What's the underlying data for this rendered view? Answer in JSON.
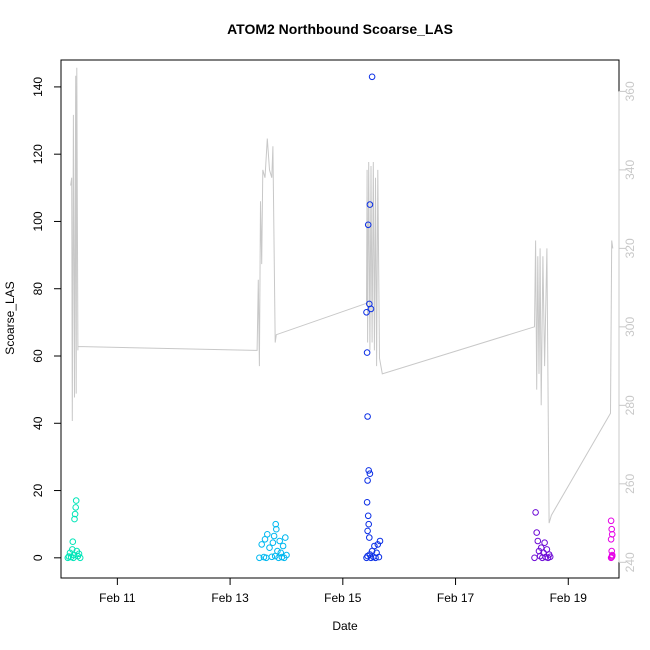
{
  "chart_data": {
    "type": "scatter",
    "title": "ATOM2 Northbound Scoarse_LAS",
    "xlabel": "Date",
    "ylabel": "Scoarse_LAS",
    "x_tick_labels": [
      "Feb 11",
      "Feb 13",
      "Feb 15",
      "Feb 17",
      "Feb 19"
    ],
    "x_tick_values": [
      11,
      13,
      15,
      17,
      19
    ],
    "xlim": [
      10.0,
      19.9
    ],
    "ylim": [
      -6,
      148
    ],
    "y_ticks": [
      0,
      20,
      40,
      60,
      80,
      100,
      120,
      140
    ],
    "y2lim": [
      236,
      368
    ],
    "y2_ticks": [
      240,
      260,
      280,
      300,
      320,
      340,
      360
    ],
    "y2_color": "#c8c8c8",
    "secondary_line": {
      "color": "#c8c8c8",
      "points": [
        [
          10.17,
          336
        ],
        [
          10.19,
          338
        ],
        [
          10.2,
          276
        ],
        [
          10.22,
          354
        ],
        [
          10.24,
          282
        ],
        [
          10.26,
          364
        ],
        [
          10.27,
          283
        ],
        [
          10.28,
          366
        ],
        [
          10.3,
          294
        ],
        [
          10.3,
          295
        ],
        [
          13.48,
          294
        ],
        [
          13.5,
          312
        ],
        [
          13.52,
          290
        ],
        [
          13.54,
          332
        ],
        [
          13.56,
          316
        ],
        [
          13.58,
          340
        ],
        [
          13.62,
          338
        ],
        [
          13.66,
          348
        ],
        [
          13.7,
          340
        ],
        [
          13.74,
          338
        ],
        [
          13.76,
          346
        ],
        [
          13.8,
          296
        ],
        [
          13.82,
          298
        ],
        [
          15.42,
          306
        ],
        [
          15.43,
          340
        ],
        [
          15.44,
          296
        ],
        [
          15.46,
          342
        ],
        [
          15.48,
          294
        ],
        [
          15.5,
          341
        ],
        [
          15.52,
          296
        ],
        [
          15.54,
          342
        ],
        [
          15.56,
          294
        ],
        [
          15.58,
          338
        ],
        [
          15.6,
          290
        ],
        [
          15.62,
          340
        ],
        [
          15.65,
          292
        ],
        [
          15.7,
          288
        ],
        [
          18.4,
          300
        ],
        [
          18.42,
          322
        ],
        [
          18.44,
          284
        ],
        [
          18.46,
          318
        ],
        [
          18.48,
          288
        ],
        [
          18.5,
          320
        ],
        [
          18.52,
          280
        ],
        [
          18.55,
          318
        ],
        [
          18.58,
          290
        ],
        [
          18.62,
          320
        ],
        [
          18.66,
          250
        ],
        [
          18.7,
          252
        ],
        [
          19.75,
          278
        ],
        [
          19.77,
          322
        ],
        [
          19.79,
          320
        ]
      ]
    },
    "series": [
      {
        "color": "#00e5b8",
        "points": [
          [
            10.12,
            0
          ],
          [
            10.14,
            0.4
          ],
          [
            10.16,
            1.5
          ],
          [
            10.18,
            0.2
          ],
          [
            10.2,
            2.5
          ],
          [
            10.21,
            4.8
          ],
          [
            10.22,
            0
          ],
          [
            10.23,
            0.8
          ],
          [
            10.24,
            11.5
          ],
          [
            10.25,
            13
          ],
          [
            10.26,
            15
          ],
          [
            10.27,
            17
          ],
          [
            10.28,
            2
          ],
          [
            10.3,
            0.5
          ],
          [
            10.32,
            1.2
          ],
          [
            10.34,
            0
          ]
        ]
      },
      {
        "color": "#00b8f0",
        "points": [
          [
            13.52,
            0
          ],
          [
            13.56,
            4
          ],
          [
            13.6,
            0.2
          ],
          [
            13.62,
            5.5
          ],
          [
            13.64,
            0
          ],
          [
            13.66,
            7
          ],
          [
            13.7,
            3
          ],
          [
            13.74,
            0.3
          ],
          [
            13.76,
            4.5
          ],
          [
            13.78,
            6.5
          ],
          [
            13.8,
            0.5
          ],
          [
            13.81,
            10
          ],
          [
            13.82,
            8.5
          ],
          [
            13.84,
            2
          ],
          [
            13.86,
            0
          ],
          [
            13.88,
            5
          ],
          [
            13.9,
            1.5
          ],
          [
            13.92,
            0.2
          ],
          [
            13.94,
            3.5
          ],
          [
            13.96,
            0
          ],
          [
            13.98,
            6
          ],
          [
            14.0,
            0.8
          ]
        ]
      },
      {
        "color": "#0a2ee6",
        "points": [
          [
            15.42,
            73
          ],
          [
            15.43,
            61
          ],
          [
            15.44,
            42
          ],
          [
            15.45,
            99
          ],
          [
            15.47,
            75.5
          ],
          [
            15.48,
            105
          ],
          [
            15.5,
            74
          ],
          [
            15.52,
            143
          ],
          [
            15.46,
            26
          ],
          [
            15.48,
            25
          ],
          [
            15.44,
            23
          ],
          [
            15.43,
            16.5
          ],
          [
            15.45,
            12.5
          ],
          [
            15.46,
            10
          ],
          [
            15.44,
            8
          ],
          [
            15.47,
            6
          ],
          [
            15.42,
            0
          ],
          [
            15.44,
            0.5
          ],
          [
            15.48,
            1
          ],
          [
            15.5,
            0
          ],
          [
            15.52,
            2
          ],
          [
            15.54,
            0.3
          ],
          [
            15.56,
            3.5
          ],
          [
            15.58,
            0
          ],
          [
            15.6,
            1.5
          ],
          [
            15.62,
            4
          ],
          [
            15.64,
            0.2
          ],
          [
            15.66,
            5
          ]
        ]
      },
      {
        "color": "#6d0ad6",
        "points": [
          [
            18.4,
            0
          ],
          [
            18.42,
            13.5
          ],
          [
            18.44,
            7.5
          ],
          [
            18.46,
            5
          ],
          [
            18.48,
            2
          ],
          [
            18.5,
            0.5
          ],
          [
            18.52,
            3
          ],
          [
            18.54,
            0
          ],
          [
            18.56,
            1.5
          ],
          [
            18.58,
            4.5
          ],
          [
            18.6,
            0.2
          ],
          [
            18.62,
            2.5
          ],
          [
            18.64,
            0
          ],
          [
            18.66,
            1
          ],
          [
            18.68,
            0.3
          ]
        ]
      },
      {
        "color": "#e600e6",
        "points": [
          [
            19.76,
            11
          ],
          [
            19.77,
            8.5
          ],
          [
            19.78,
            7
          ],
          [
            19.76,
            5.5
          ],
          [
            19.77,
            2
          ],
          [
            19.78,
            0.5
          ],
          [
            19.76,
            0
          ],
          [
            19.77,
            0.2
          ],
          [
            19.78,
            0.8
          ]
        ]
      }
    ]
  }
}
